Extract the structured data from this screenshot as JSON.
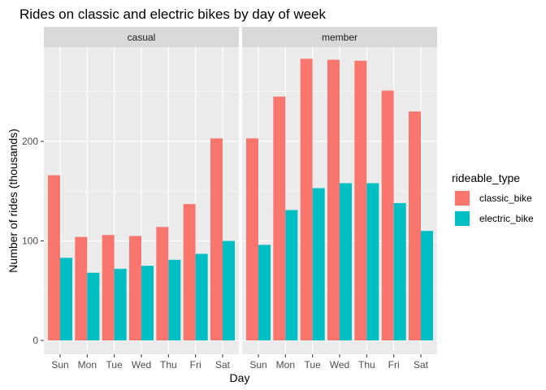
{
  "chart_data": {
    "type": "bar",
    "title": "Rides on classic and electric bikes by day of week",
    "xlabel": "Day",
    "ylabel": "Number of rides (thousands)",
    "categories": [
      "Sun",
      "Mon",
      "Tue",
      "Wed",
      "Thu",
      "Fri",
      "Sat"
    ],
    "y_ticks": [
      0,
      100,
      200
    ],
    "ylim": [
      0,
      300
    ],
    "grid": true,
    "legend": {
      "title": "rideable_type",
      "placement": "right",
      "entries": [
        "classic_bike",
        "electric_bike"
      ]
    },
    "colors": {
      "classic_bike": "#F8766D",
      "electric_bike": "#00BFC4",
      "panel_background": "#EBEBEB",
      "strip_background": "#D9D9D9"
    },
    "panels": [
      {
        "name": "casual",
        "series": [
          {
            "name": "classic_bike",
            "values": [
              166,
              104,
              106,
              105,
              114,
              137,
              203
            ]
          },
          {
            "name": "electric_bike",
            "values": [
              83,
              68,
              72,
              75,
              81,
              87,
              100
            ]
          }
        ]
      },
      {
        "name": "member",
        "series": [
          {
            "name": "classic_bike",
            "values": [
              203,
              245,
              283,
              282,
              281,
              251,
              230
            ]
          },
          {
            "name": "electric_bike",
            "values": [
              96,
              131,
              153,
              158,
              158,
              138,
              110
            ]
          }
        ]
      }
    ]
  }
}
